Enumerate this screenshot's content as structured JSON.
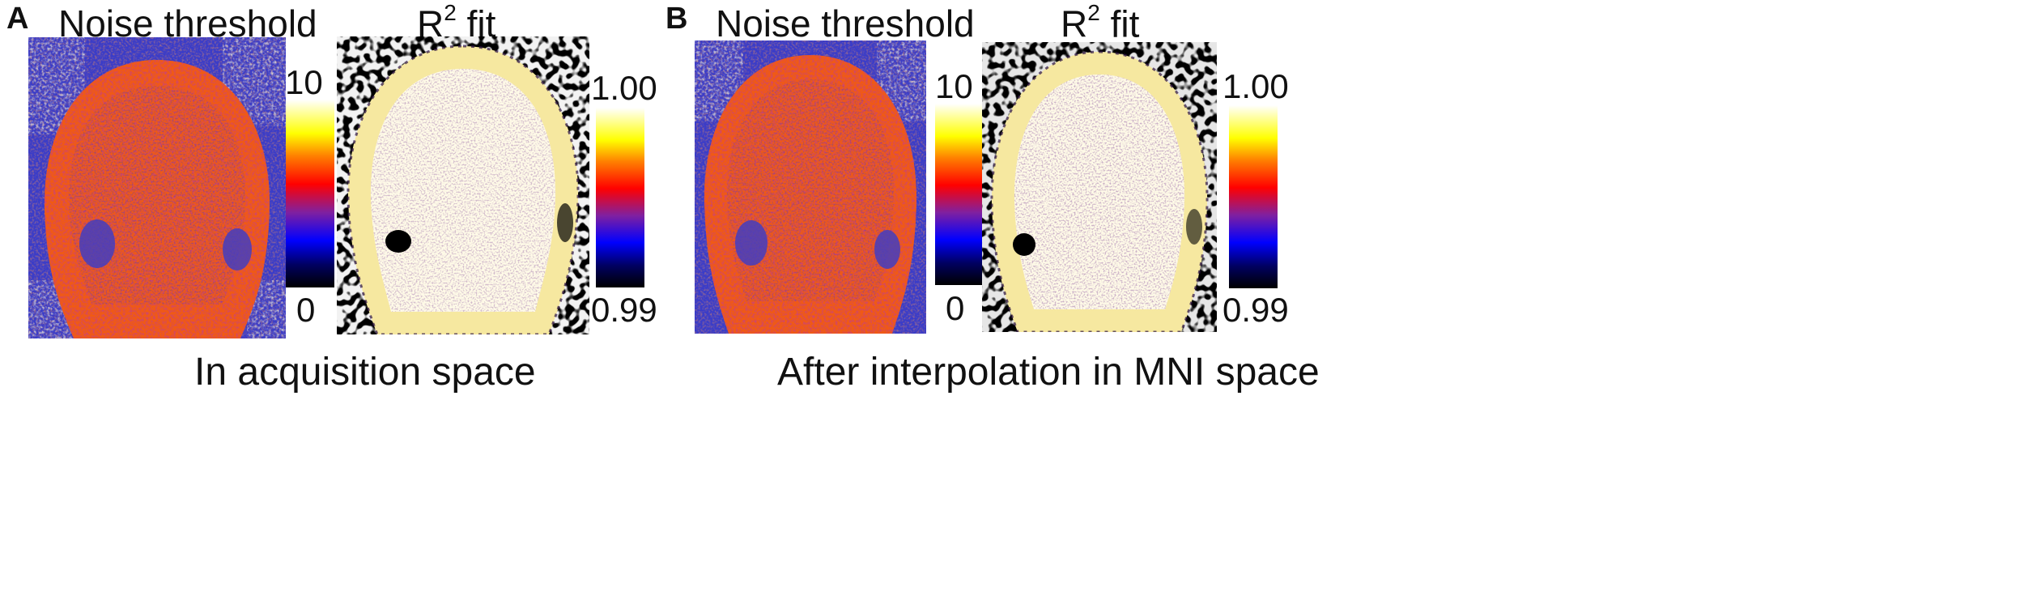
{
  "panel_a": {
    "letter": "A",
    "noise_title": "Noise threshold",
    "r2_title_main": "R",
    "r2_title_sup": "2",
    "r2_title_rest": " fit",
    "noise_cbar_max": "10",
    "noise_cbar_min": "0",
    "r2_cbar_max": "1.00",
    "r2_cbar_min": "0.99",
    "caption": "In acquisition space"
  },
  "panel_b": {
    "letter": "B",
    "noise_title": "Noise threshold",
    "r2_title_main": "R",
    "r2_title_sup": "2",
    "r2_title_rest": " fit",
    "noise_cbar_max": "10",
    "noise_cbar_min": "0",
    "r2_cbar_max": "1.00",
    "r2_cbar_min": "0.99",
    "caption": "After interpolation in MNI space"
  },
  "colormap": [
    "#000000",
    "#0000ff",
    "#ff0000",
    "#ffff00",
    "#ffffff"
  ]
}
